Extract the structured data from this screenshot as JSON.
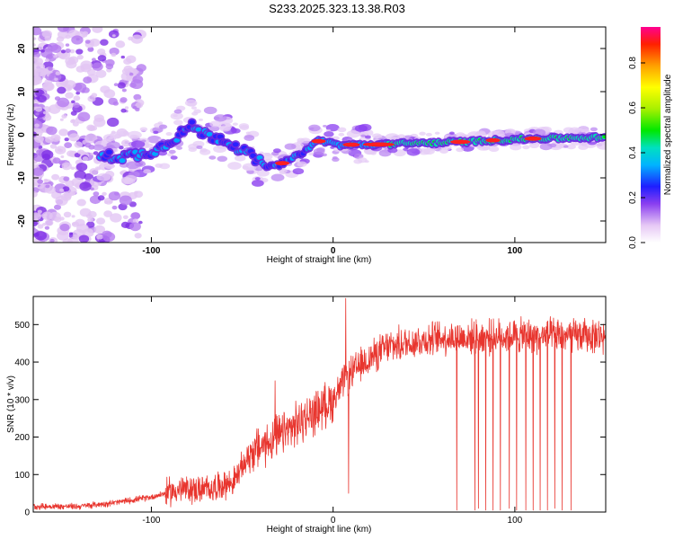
{
  "title": "S233.2025.323.13.38.R03",
  "chart_data": [
    {
      "type": "heatmap",
      "name": "spectrogram",
      "xlabel": "Height of straight line (km)",
      "ylabel": "Frequency (Hz)",
      "xlim": [
        -165,
        150
      ],
      "ylim": [
        -25,
        25
      ],
      "xticks": [
        -100,
        0,
        100
      ],
      "yticks": [
        -20,
        -10,
        0,
        10,
        20
      ],
      "ridge": {
        "x": [
          -125,
          -115,
          -105,
          -95,
          -85,
          -78,
          -70,
          -60,
          -52,
          -45,
          -40,
          -35,
          -30,
          -25,
          -18,
          -12,
          -8,
          -4,
          0,
          5,
          10,
          20,
          30,
          40,
          60,
          80,
          100,
          120,
          150
        ],
        "y": [
          -5,
          -5,
          -4.5,
          -3,
          0,
          2,
          0,
          -1,
          -3,
          -5,
          -6.5,
          -7.5,
          -7,
          -6,
          -4.5,
          -2.5,
          -1.5,
          -1.5,
          -2,
          -2.5,
          -2.3,
          -2.3,
          -2.2,
          -2.0,
          -1.8,
          -1.5,
          -1.0,
          -0.8,
          -0.6
        ]
      },
      "colorbar": {
        "label": "Normalized spectral amplitude",
        "range": [
          0,
          0.96
        ],
        "ticks": [
          0.0,
          0.2,
          0.4,
          0.6,
          0.8
        ],
        "tick_labels": [
          "0.0",
          "0.2",
          "0.4",
          "0.6",
          "0.8"
        ]
      }
    },
    {
      "type": "line",
      "name": "snr",
      "xlabel": "Height of straight line (km)",
      "ylabel": "SNR (10 * v/v)",
      "xlim": [
        -165,
        150
      ],
      "ylim": [
        0,
        575
      ],
      "xticks": [
        -100,
        0,
        100
      ],
      "yticks": [
        0,
        100,
        200,
        300,
        400,
        500
      ],
      "color": "#e8352e",
      "trend": {
        "x": [
          -165,
          -140,
          -120,
          -100,
          -85,
          -70,
          -55,
          -45,
          -30,
          -15,
          0,
          5,
          10,
          20,
          30,
          45,
          60,
          80,
          100,
          120,
          150
        ],
        "y": [
          15,
          15,
          25,
          40,
          60,
          60,
          80,
          160,
          200,
          250,
          300,
          340,
          370,
          410,
          440,
          455,
          465,
          465,
          470,
          470,
          470
        ]
      },
      "spikes": [
        {
          "x": 7,
          "y": 570
        },
        {
          "x": 8.5,
          "y": 50
        },
        {
          "x": -32,
          "y": 350
        },
        {
          "x": 68,
          "y": 5
        },
        {
          "x": 78,
          "y": 5
        },
        {
          "x": 80,
          "y": 10
        },
        {
          "x": 84,
          "y": 5
        },
        {
          "x": 88,
          "y": 5
        },
        {
          "x": 92,
          "y": 5
        },
        {
          "x": 97,
          "y": 10
        },
        {
          "x": 101,
          "y": 5
        },
        {
          "x": 106,
          "y": 5
        },
        {
          "x": 110,
          "y": 5
        },
        {
          "x": 114,
          "y": 5
        },
        {
          "x": 118,
          "y": 5
        },
        {
          "x": 122,
          "y": 10
        },
        {
          "x": 126,
          "y": 5
        },
        {
          "x": 131,
          "y": 5
        }
      ]
    }
  ]
}
